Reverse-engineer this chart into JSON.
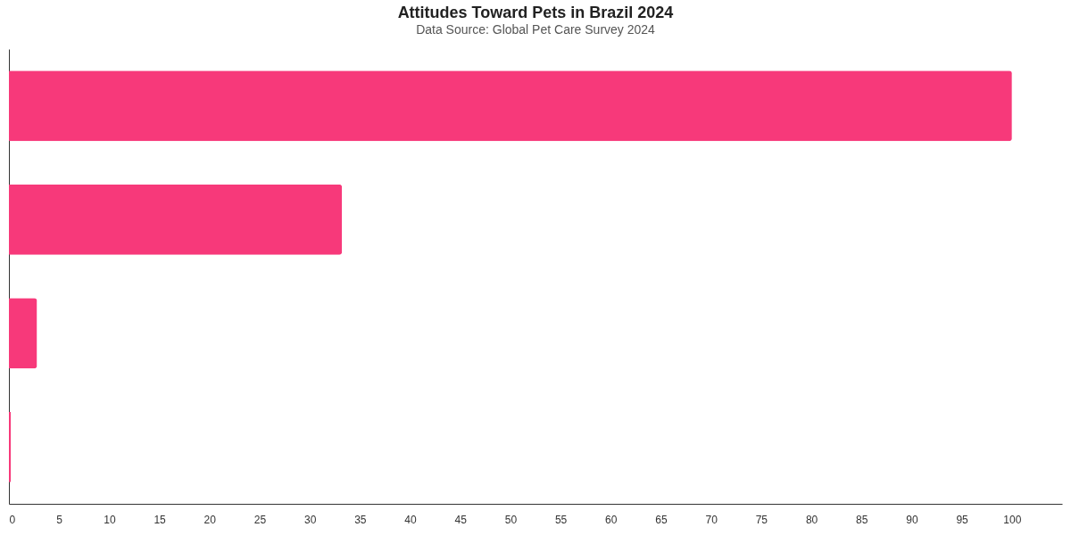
{
  "chart_data": {
    "type": "bar",
    "orientation": "horizontal",
    "title": "Attitudes Toward Pets in Brazil 2024",
    "subtitle": "Data Source: Global Pet Care Survey 2024",
    "categories": [
      null,
      null,
      null,
      null
    ],
    "series": [
      {
        "color": "#f7397a",
        "values": [
          100,
          33.2,
          2.8,
          0.2
        ]
      }
    ],
    "xlim": [
      0,
      105
    ],
    "xticks": [
      0,
      5,
      10,
      15,
      20,
      25,
      30,
      35,
      40,
      45,
      50,
      55,
      60,
      65,
      70,
      75,
      80,
      85,
      90,
      95,
      100
    ],
    "tick_labels": "x",
    "grid": false
  }
}
